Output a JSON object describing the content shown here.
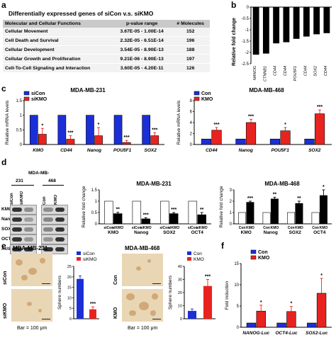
{
  "panel_a": {
    "label": "a",
    "title": "Differentially expressed genes of siCon v.s. siKMO",
    "columns": [
      "Molecular and Cellular Functions",
      "p-value range",
      "# Molecules"
    ],
    "rows": [
      [
        "Cellular Movement",
        "3.67E-05 - 1.00E-14",
        "152"
      ],
      [
        "Cell Death and Survival",
        "2.32E-05 - 6.51E-14",
        "196"
      ],
      [
        "Cellular Development",
        "3.54E-05 - 8.90E-13",
        "188"
      ],
      [
        "Cellular Growth and Proliferation",
        "9.21E-06 - 8.90E-13",
        "197"
      ],
      [
        "Cell-To-Cell Signaling and Interaction",
        "3.60E-05 - 4.20E-11",
        "126"
      ]
    ]
  },
  "panel_labels": {
    "b": "b",
    "c": "c",
    "d": "d",
    "e": "e",
    "f": "f"
  },
  "panel_d": {
    "cell_line_header": "MDA-MB-",
    "sub_231": "231",
    "sub_468": "468",
    "lane_labels": [
      "siCon",
      "siKMO",
      "Con",
      "KMO"
    ],
    "blot_rows": [
      "KMO",
      "Nanog",
      "SOX2",
      "OCT4",
      "Actin"
    ]
  },
  "panel_e": {
    "title_231": "MDA-MB-231",
    "title_468": "MDA-MB-468",
    "row_labels_231": [
      "siCon",
      "siKMO"
    ],
    "row_labels_468": [
      "Con",
      "KMO"
    ],
    "scalebar": "Bar = 100 μm"
  },
  "colors": {
    "blue": "#1b2fd6",
    "red": "#e8231f",
    "black": "#000000",
    "white": "#ffffff"
  },
  "chart_data": [
    {
      "id": "b",
      "type": "bar",
      "categories": [
        "NANOG",
        "CTNNB1",
        "CD44",
        "CD44",
        "POU5F1",
        "CD44",
        "SOX2",
        "CD44"
      ],
      "values": [
        -2.1,
        -2.05,
        -1.6,
        -1.55,
        -1.4,
        -1.3,
        -1.2,
        -1.15
      ],
      "ylabel": "Relative fold change",
      "ylim": [
        -2.5,
        0
      ],
      "yticks": [
        "0",
        "-0.5",
        "-1",
        "-1.5",
        "-2",
        "-2.5"
      ]
    },
    {
      "id": "c1",
      "type": "bar",
      "title": "MDA-MB-231",
      "categories": [
        "KMO",
        "CD44",
        "Nanog",
        "POU5F1",
        "SOX2"
      ],
      "series": [
        {
          "name": "siCon",
          "values": [
            1,
            1,
            1,
            1,
            1
          ]
        },
        {
          "name": "siKMO",
          "values": [
            0.35,
            0.18,
            0.3,
            0.07,
            0.3
          ]
        }
      ],
      "errors": [
        0.2,
        0.12,
        0.28,
        0.07,
        0.1
      ],
      "signif": [
        "*",
        "***",
        "*",
        "***",
        "***"
      ],
      "ylabel": "Relative mRNA levels",
      "ylim": [
        0,
        1.5
      ],
      "yticks": [
        "0",
        "0.5",
        "1",
        "1.5"
      ]
    },
    {
      "id": "c2",
      "type": "bar",
      "title": "MDA-MB-468",
      "categories": [
        "CD44",
        "Nanog",
        "POU5F1",
        "SOX2"
      ],
      "series": [
        {
          "name": "Con",
          "values": [
            1,
            1,
            1,
            1
          ]
        },
        {
          "name": "KMO",
          "values": [
            2.6,
            4.0,
            2.5,
            5.6
          ]
        }
      ],
      "errors": [
        0.5,
        0.6,
        0.6,
        0.7
      ],
      "signif": [
        "***",
        "***",
        "*",
        "***"
      ],
      "ylabel": "Relative mRNA levels",
      "ylim": [
        0,
        8
      ],
      "yticks": [
        "0",
        "2",
        "4",
        "6",
        "8"
      ]
    },
    {
      "id": "d1",
      "type": "bar",
      "title": "MDA-MB-231",
      "categories": [
        "KMO",
        "Nanog",
        "SOX2",
        "OCT4"
      ],
      "bar_labels": [
        "siCon",
        "siKMO"
      ],
      "series": [
        {
          "name": "siCon",
          "values": [
            1,
            1,
            1,
            1
          ]
        },
        {
          "name": "siKMO",
          "values": [
            0.45,
            0.22,
            0.45,
            0.4
          ]
        }
      ],
      "errors": [
        0.06,
        0.05,
        0.05,
        0.1
      ],
      "signif": [
        "**",
        "***",
        "***",
        "**"
      ],
      "ylabel": "Relative fold change",
      "ylim": [
        0,
        1.5
      ],
      "yticks": [
        "0",
        "0.5",
        "1",
        "1.5"
      ]
    },
    {
      "id": "d2",
      "type": "bar",
      "title": "MDA-MB-468",
      "categories": [
        "KMO",
        "Nanog",
        "SOX2",
        "OCT4"
      ],
      "bar_labels": [
        "Con",
        "KMO"
      ],
      "series": [
        {
          "name": "Con",
          "values": [
            1,
            1,
            1,
            1
          ]
        },
        {
          "name": "KMO",
          "values": [
            1.9,
            2.2,
            1.8,
            2.5
          ]
        }
      ],
      "errors": [
        0.1,
        0.15,
        0.2,
        0.5
      ],
      "signif": [
        "***",
        "**",
        "**",
        "*"
      ],
      "ylabel": "Relative fold change",
      "ylim": [
        0,
        3
      ],
      "yticks": [
        "0",
        "1",
        "2",
        "3"
      ]
    },
    {
      "id": "e1",
      "type": "bar",
      "categories": [
        "siCon",
        "siKMO"
      ],
      "values": [
        19,
        4.5
      ],
      "errors": [
        1.5,
        1.2
      ],
      "signif": [
        "",
        "***"
      ],
      "ylabel": "Sphere numbers",
      "ylim": [
        0,
        25
      ],
      "yticks": [
        "0",
        "5",
        "10",
        "15",
        "20",
        "25"
      ]
    },
    {
      "id": "e2",
      "type": "bar",
      "categories": [
        "Con",
        "KMO"
      ],
      "values": [
        6,
        25
      ],
      "errors": [
        1.5,
        5
      ],
      "signif": [
        "",
        "***"
      ],
      "ylabel": "Sphere numbers",
      "ylim": [
        0,
        40
      ],
      "yticks": [
        "0",
        "10",
        "20",
        "30",
        "40"
      ]
    },
    {
      "id": "f",
      "type": "bar",
      "categories": [
        "NANOG-Luc",
        "OCT4-Luc",
        "SOX2-Luc"
      ],
      "series": [
        {
          "name": "Con",
          "values": [
            1,
            1,
            1
          ]
        },
        {
          "name": "KMO",
          "values": [
            3.8,
            3.7,
            8.0
          ]
        }
      ],
      "errors": [
        1.4,
        1.2,
        3.5
      ],
      "signif": [
        "*",
        "*",
        "*"
      ],
      "ylabel": "Fold induction",
      "ylim": [
        0,
        15
      ],
      "yticks": [
        "0",
        "5",
        "10",
        "15"
      ]
    }
  ]
}
